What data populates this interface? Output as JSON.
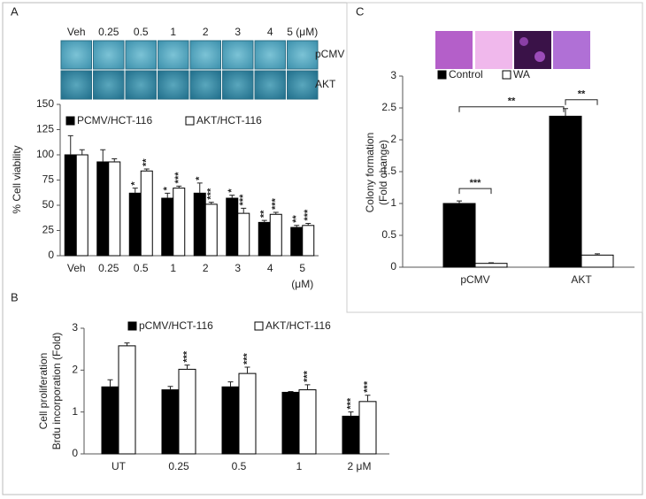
{
  "chart_data": [
    {
      "type": "bar",
      "panel": "A",
      "image_columns": [
        "Veh",
        "0.25",
        "0.5",
        "1",
        "2",
        "3",
        "4",
        "5 (μM)"
      ],
      "image_rows": [
        "pCMV",
        "AKT"
      ],
      "categories": [
        "Veh",
        "0.25",
        "0.5",
        "1",
        "2",
        "3",
        "4",
        "5"
      ],
      "x_unit": "(μM)",
      "ylabel": [
        "% Cell viability"
      ],
      "ylim": [
        0,
        150
      ],
      "yticks": [
        0,
        25,
        50,
        75,
        100,
        125,
        150
      ],
      "series": [
        {
          "name": "PCMV/HCT-116",
          "color": "#000000",
          "values": [
            100,
            93,
            62,
            57,
            62,
            57,
            33,
            28
          ],
          "errors": [
            19,
            12,
            5,
            5,
            10,
            3,
            2,
            2
          ],
          "annotations": [
            null,
            null,
            "*",
            "*",
            "*",
            "*",
            "**",
            "**"
          ]
        },
        {
          "name": "AKT/HCT-116",
          "color": "#ffffff",
          "values": [
            100,
            93,
            84,
            67,
            51,
            42,
            41,
            30
          ],
          "errors": [
            5,
            3,
            2,
            2,
            2,
            5,
            2,
            2
          ],
          "annotations": [
            null,
            null,
            "**",
            "***",
            "***",
            "***",
            "***",
            "***"
          ]
        }
      ]
    },
    {
      "type": "bar",
      "panel": "B",
      "categories": [
        "UT",
        "0.25",
        "0.5",
        "1",
        "2 μM"
      ],
      "ylabel": [
        "Cell proliferation",
        "Brdu incorporation  (Fold)"
      ],
      "ylim": [
        0,
        3
      ],
      "yticks": [
        0,
        1,
        2,
        3
      ],
      "series": [
        {
          "name": "pCMV/HCT-116",
          "color": "#000000",
          "values": [
            1.6,
            1.53,
            1.6,
            1.47,
            0.9
          ],
          "errors": [
            0.17,
            0.08,
            0.12,
            0.02,
            0.1
          ],
          "annotations": [
            null,
            null,
            null,
            null,
            "***"
          ]
        },
        {
          "name": "AKT/HCT-116",
          "color": "#ffffff",
          "values": [
            2.58,
            2.02,
            1.92,
            1.53,
            1.25
          ],
          "errors": [
            0.07,
            0.1,
            0.15,
            0.12,
            0.15
          ],
          "annotations": [
            null,
            "***",
            "***",
            "***",
            "***"
          ]
        }
      ]
    },
    {
      "type": "bar",
      "panel": "C",
      "categories": [
        "pCMV",
        "AKT"
      ],
      "ylabel": [
        "Colony formation",
        "(Fold change)"
      ],
      "ylim": [
        0,
        3
      ],
      "yticks": [
        0,
        0.5,
        1,
        1.5,
        2,
        2.5,
        3
      ],
      "series": [
        {
          "name": "Control",
          "color": "#000000",
          "values": [
            1.0,
            2.37
          ],
          "errors": [
            0.04,
            0.12
          ]
        },
        {
          "name": "WA",
          "color": "#ffffff",
          "values": [
            0.06,
            0.19
          ],
          "errors": [
            0.01,
            0.02
          ]
        }
      ],
      "brackets": [
        "***",
        "**",
        "**"
      ]
    }
  ]
}
